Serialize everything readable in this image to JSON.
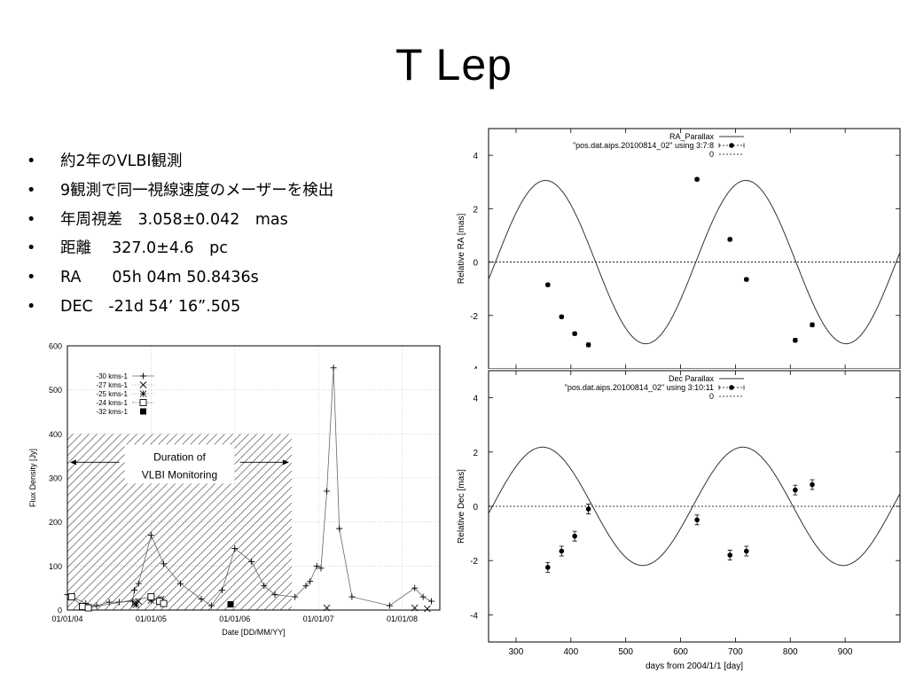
{
  "slide": {
    "title": "T Lep",
    "bullet_marker": "•",
    "bullets": [
      "約2年のVLBI観測",
      "9観測で同一視線速度のメーザーを検出",
      "年周視差　3.058±0.042　mas",
      "距離　 327.0±4.6　pc",
      "RA　　05h 04m 50.8436s",
      "DEC　-21d 54’ 16”.505"
    ]
  },
  "chart_data": [
    {
      "type": "scatter",
      "ylabel": "Flux Density [Jy]",
      "xlabel": "Date [DD/MM/YY]",
      "ylim": [
        0,
        600
      ],
      "yticks": [
        0,
        100,
        200,
        300,
        400,
        500,
        600
      ],
      "xticks": [
        "01/01/04",
        "01/01/05",
        "01/01/06",
        "01/01/07",
        "01/01/08"
      ],
      "xlim": [
        2004.0,
        2008.45
      ],
      "legend_position": "top-left",
      "annotation": [
        "Duration of",
        "VLBI Monitoring"
      ],
      "shaded_range": [
        2004.0,
        2006.68
      ],
      "shaded_ymax": 400,
      "grid": true,
      "series": [
        {
          "name": "-30 kms-1",
          "marker": "plus",
          "line": true,
          "x": [
            2004.0,
            2004.22,
            2004.35,
            2004.5,
            2004.62,
            2004.78,
            2004.8,
            2004.85,
            2005.0,
            2005.15,
            2005.35,
            2005.6,
            2005.72,
            2005.85,
            2006.0,
            2006.2,
            2006.35,
            2006.48,
            2006.72,
            2006.85,
            2006.9,
            2006.98,
            2007.03,
            2007.1,
            2007.18,
            2007.25,
            2007.4,
            2007.85,
            2008.15,
            2008.25,
            2008.35
          ],
          "y": [
            35,
            15,
            10,
            18,
            18,
            20,
            45,
            60,
            170,
            105,
            60,
            25,
            10,
            45,
            140,
            110,
            55,
            35,
            30,
            55,
            65,
            100,
            95,
            270,
            550,
            185,
            30,
            10,
            50,
            30,
            20
          ]
        },
        {
          "name": "-27 kms-1",
          "marker": "x",
          "line": false,
          "x": [
            2004.8,
            2004.85,
            2007.1,
            2008.15,
            2008.3
          ],
          "y": [
            15,
            20,
            5,
            5,
            3
          ]
        },
        {
          "name": "-25 kms-1",
          "marker": "star",
          "line": false,
          "x": [
            2004.82,
            2005.0,
            2005.12
          ],
          "y": [
            12,
            22,
            25
          ]
        },
        {
          "name": "-24 kms-1",
          "marker": "square-open",
          "line": true,
          "x": [
            2004.05,
            2004.18,
            2004.25,
            2005.0,
            2005.1,
            2005.15
          ],
          "y": [
            30,
            8,
            5,
            30,
            20,
            15
          ]
        },
        {
          "name": "-32 kms-1",
          "marker": "square-filled",
          "line": false,
          "x": [
            2005.95
          ],
          "y": [
            13
          ]
        }
      ]
    },
    {
      "type": "line",
      "ylabel": "Relative RA [mas]",
      "ylim": [
        -4,
        5
      ],
      "yticks": [
        -4,
        -2,
        0,
        2,
        4
      ],
      "xlim": [
        250,
        1000
      ],
      "legend_position": "top-right",
      "grid": false,
      "series": [
        {
          "name": "RA_Parallax",
          "kind": "model",
          "amplitude": 3.058,
          "period": 365.25,
          "phase_zero_day": 262.5
        },
        {
          "name": "\"pos.dat.aips.20100814_02\" using 3:7:8",
          "kind": "points",
          "x": [
            358,
            383,
            407,
            432,
            630,
            690,
            720,
            809,
            840
          ],
          "y": [
            -0.85,
            -2.05,
            -2.68,
            -3.1,
            3.1,
            0.85,
            -0.65,
            -2.93,
            -2.35
          ],
          "err": [
            0.06,
            0.06,
            0.06,
            0.07,
            0.06,
            0.06,
            0.06,
            0.07,
            0.07
          ]
        },
        {
          "name": "0",
          "kind": "zero"
        }
      ]
    },
    {
      "type": "line",
      "ylabel": "Relative Dec [mas]",
      "xlabel": "days from 2004/1/1 [day]",
      "ylim": [
        -5,
        5
      ],
      "yticks": [
        -4,
        -2,
        0,
        2,
        4
      ],
      "xticks": [
        300,
        400,
        500,
        600,
        700,
        800,
        900
      ],
      "xlim": [
        250,
        1000
      ],
      "legend_position": "top-right",
      "grid": false,
      "series": [
        {
          "name": "Dec Parallax",
          "kind": "model",
          "amplitude": 2.18,
          "period": 365.25,
          "phase_zero_day": 257
        },
        {
          "name": "\"pos.dat.aips.20100814_02\" using 3:10:11",
          "kind": "points",
          "x": [
            358,
            383,
            407,
            432,
            630,
            690,
            720,
            809,
            840
          ],
          "y": [
            -2.25,
            -1.65,
            -1.1,
            -0.1,
            -0.5,
            -1.8,
            -1.65,
            0.6,
            0.8
          ],
          "err": [
            0.18,
            0.18,
            0.18,
            0.18,
            0.18,
            0.18,
            0.18,
            0.18,
            0.18
          ]
        },
        {
          "name": "0",
          "kind": "zero"
        }
      ]
    }
  ]
}
